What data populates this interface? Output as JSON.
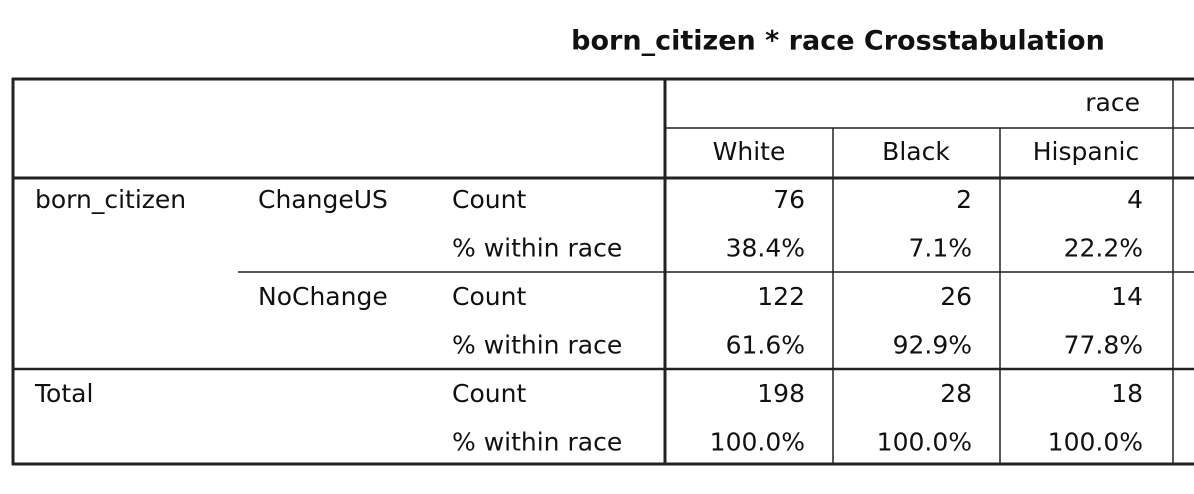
{
  "title": "born_citizen * race Crosstabulation",
  "table": {
    "column_group": "race",
    "columns": [
      "White",
      "Black",
      "Hispanic"
    ],
    "groups": [
      {
        "label": "born_citizen",
        "subgroups": [
          {
            "label": "ChangeUS",
            "rows": [
              {
                "statistic": "Count",
                "cells": [
                  "76",
                  "2",
                  "4"
                ]
              },
              {
                "statistic": "% within race",
                "cells": [
                  "38.4%",
                  "7.1%",
                  "22.2%"
                ]
              }
            ]
          },
          {
            "label": "NoChange",
            "rows": [
              {
                "statistic": "Count",
                "cells": [
                  "122",
                  "26",
                  "14"
                ]
              },
              {
                "statistic": "% within race",
                "cells": [
                  "61.6%",
                  "92.9%",
                  "77.8%"
                ]
              }
            ]
          }
        ]
      },
      {
        "label": "Total",
        "subgroups": [
          {
            "rows": [
              {
                "statistic": "Count",
                "cells": [
                  "198",
                  "28",
                  "18"
                ]
              },
              {
                "statistic": "% within race",
                "cells": [
                  "100.0%",
                  "100.0%",
                  "100.0%"
                ]
              }
            ]
          }
        ]
      }
    ]
  }
}
